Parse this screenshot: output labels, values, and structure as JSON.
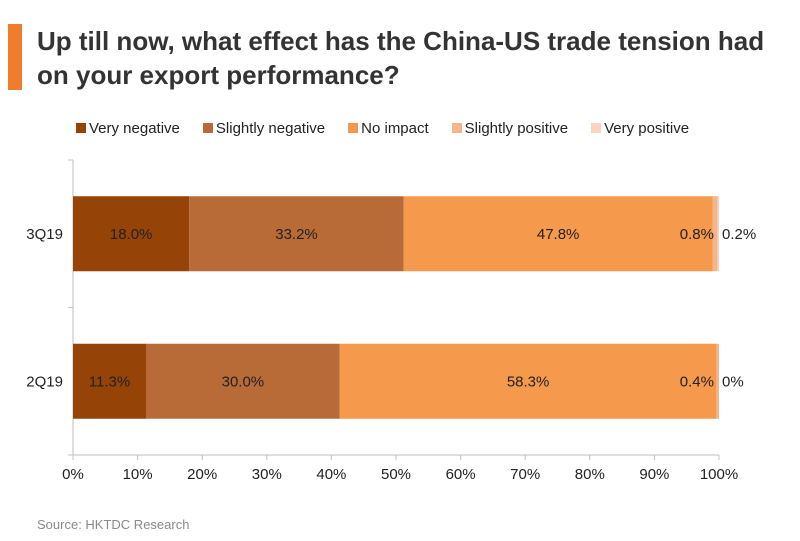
{
  "title": "Up till now, what effect has the China-US trade tension had on your export performance?",
  "source": "Source: HKTDC Research",
  "chart_data": {
    "type": "bar",
    "orientation": "horizontal",
    "stacked": true,
    "percent": true,
    "categories": [
      "3Q19",
      "2Q19"
    ],
    "series": [
      {
        "name": "Very negative",
        "color": "#954307",
        "values": [
          18.0,
          11.3
        ],
        "labels": [
          "18.0%",
          "11.3%"
        ]
      },
      {
        "name": "Slightly negative",
        "color": "#b96b37",
        "values": [
          33.2,
          30.0
        ],
        "labels": [
          "33.2%",
          "30.0%"
        ]
      },
      {
        "name": "No impact",
        "color": "#f5994d",
        "values": [
          47.8,
          58.3
        ],
        "labels": [
          "47.8%",
          "58.3%"
        ]
      },
      {
        "name": "Slightly positive",
        "color": "#f5b48a",
        "values": [
          0.8,
          0.4
        ],
        "labels": [
          "0.8%",
          "0.4%"
        ]
      },
      {
        "name": "Very positive",
        "color": "#fbd3bf",
        "values": [
          0.2,
          0.0
        ],
        "labels": [
          "0.2%",
          "0%"
        ]
      }
    ],
    "xlim": [
      0,
      100
    ],
    "xticks": [
      "0%",
      "10%",
      "20%",
      "30%",
      "40%",
      "50%",
      "60%",
      "70%",
      "80%",
      "90%",
      "100%"
    ],
    "legend_position": "top",
    "grid": false
  }
}
